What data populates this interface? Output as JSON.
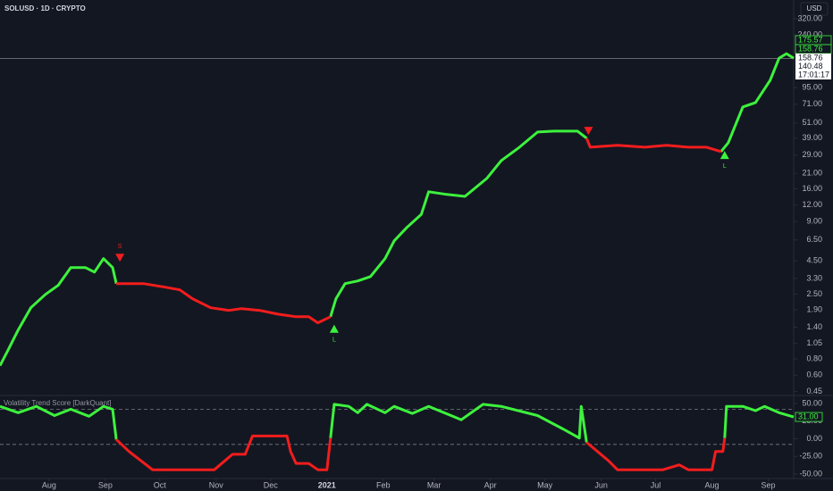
{
  "chart_data": [
    {
      "type": "line",
      "title": "SOLUSD · 1D · CRYPTO",
      "currency": "USD",
      "log": true,
      "xlim": [
        0,
        437
      ],
      "ylim": [
        0.42,
        445
      ],
      "yticks": [
        {
          "value": 320,
          "label": "320.00"
        },
        {
          "value": 240,
          "label": "240.00"
        },
        {
          "value": 95,
          "label": "95.00"
        },
        {
          "value": 71,
          "label": "71.00"
        },
        {
          "value": 51,
          "label": "51.00"
        },
        {
          "value": 39,
          "label": "39.00"
        },
        {
          "value": 29,
          "label": "29.00"
        },
        {
          "value": 21,
          "label": "21.00"
        },
        {
          "value": 16,
          "label": "16.00"
        },
        {
          "value": 12,
          "label": "12.00"
        },
        {
          "value": 9,
          "label": "9.00"
        },
        {
          "value": 6.5,
          "label": "6.50"
        },
        {
          "value": 4.5,
          "label": "4.50"
        },
        {
          "value": 3.3,
          "label": "3.30"
        },
        {
          "value": 2.5,
          "label": "2.50"
        },
        {
          "value": 1.9,
          "label": "1.90"
        },
        {
          "value": 1.4,
          "label": "1.40"
        },
        {
          "value": 1.05,
          "label": "1.05"
        },
        {
          "value": 0.8,
          "label": "0.80"
        },
        {
          "value": 0.6,
          "label": "0.60"
        },
        {
          "value": 0.45,
          "label": "0.45"
        }
      ],
      "x": [
        0,
        5,
        10,
        17,
        25,
        32,
        39,
        47,
        52,
        57,
        62,
        64,
        79,
        91,
        99,
        106,
        116,
        126,
        133,
        143,
        153,
        163,
        170,
        175,
        182,
        185,
        190,
        197,
        204,
        212,
        217,
        224,
        232,
        236,
        246,
        256,
        268,
        276,
        286,
        296,
        305,
        318,
        323,
        325,
        340,
        355,
        367,
        379,
        389,
        397,
        401,
        409,
        416,
        424,
        429,
        433,
        437
      ],
      "series": [
        {
          "color": "#3df23d",
          "values": [
            0.71,
            0.97,
            1.33,
            1.97,
            2.49,
            2.92,
            4.0,
            4.0,
            3.69,
            4.68,
            4.0,
            3.01,
            null,
            null,
            null,
            null,
            null,
            null,
            null,
            null,
            null,
            null,
            null,
            null,
            1.68,
            2.31,
            3.01,
            3.16,
            3.41,
            4.68,
            6.4,
            8.1,
            10.2,
            15.2,
            14.5,
            14.0,
            19.2,
            26.3,
            33.3,
            43.5,
            44.2,
            44.2,
            39.0,
            null,
            null,
            null,
            null,
            null,
            null,
            30.8,
            36.0,
            67.6,
            73.1,
            108,
            160,
            173,
            160
          ]
        },
        {
          "color": "#f21d1d",
          "values": [
            null,
            null,
            null,
            null,
            null,
            null,
            null,
            null,
            null,
            null,
            null,
            3.01,
            3.01,
            2.83,
            2.7,
            2.31,
            1.97,
            1.88,
            1.94,
            1.88,
            1.76,
            1.68,
            1.68,
            1.51,
            1.68,
            null,
            null,
            null,
            null,
            null,
            null,
            null,
            null,
            null,
            null,
            null,
            null,
            null,
            null,
            null,
            null,
            null,
            39.0,
            33.3,
            34.4,
            33.3,
            34.4,
            33.3,
            33.3,
            30.8,
            null,
            null,
            null,
            null,
            null,
            null,
            null
          ]
        }
      ],
      "signals": [
        {
          "x": 66,
          "y": 4.79,
          "dir": "down",
          "label": "S"
        },
        {
          "x": 184,
          "y": 1.35,
          "dir": "up",
          "label": "L"
        },
        {
          "x": 324,
          "y": 44.7,
          "dir": "down"
        },
        {
          "x": 399,
          "y": 28.8,
          "dir": "up",
          "label": "L"
        }
      ],
      "price_badges": [
        {
          "value": 175.57,
          "color": "#3df23d"
        },
        {
          "value": 158.76,
          "color": "#3df23d"
        }
      ],
      "last_price": 158.76,
      "last_price_info": [
        140.48,
        "17:01:17"
      ]
    },
    {
      "type": "line",
      "title": "Volatility Trend Score [DarkQuant]",
      "xlim": [
        0,
        437
      ],
      "ylim": [
        -56.4,
        61.5
      ],
      "yticks": [
        {
          "value": 50,
          "label": "50.00"
        },
        {
          "value": 25,
          "label": "25.00"
        },
        {
          "value": 0,
          "label": "0.00"
        },
        {
          "value": -25,
          "label": "-25.00"
        },
        {
          "value": -50,
          "label": "-50.00"
        }
      ],
      "levels": [
        42,
        -8
      ],
      "xticks": [
        {
          "value": 27,
          "label": "Aug"
        },
        {
          "value": 58,
          "label": "Sep"
        },
        {
          "value": 88,
          "label": "Oct"
        },
        {
          "value": 119,
          "label": "Nov"
        },
        {
          "value": 149,
          "label": "Dec"
        },
        {
          "value": 180,
          "label": "2021"
        },
        {
          "value": 211,
          "label": "Feb"
        },
        {
          "value": 239,
          "label": "Mar"
        },
        {
          "value": 270,
          "label": "Apr"
        },
        {
          "value": 300,
          "label": "May"
        },
        {
          "value": 331,
          "label": "Jun"
        },
        {
          "value": 361,
          "label": "Jul"
        },
        {
          "value": 392,
          "label": "Aug"
        },
        {
          "value": 423,
          "label": "Sep"
        }
      ],
      "x": [
        0,
        10,
        20,
        30,
        39,
        49,
        57,
        62,
        64,
        71,
        84,
        118,
        128,
        135,
        139,
        158,
        160,
        163,
        170,
        175,
        180,
        182,
        184,
        192,
        197,
        202,
        212,
        217,
        227,
        236,
        254,
        266,
        276,
        296,
        310,
        319,
        320,
        323,
        335,
        340,
        365,
        374,
        379,
        392,
        394,
        398,
        399,
        400,
        409,
        416,
        421,
        429,
        437
      ],
      "series": [
        {
          "color": "#3df23d",
          "values": [
            46,
            37,
            46,
            33,
            42,
            32,
            46,
            42,
            -1,
            null,
            null,
            null,
            null,
            null,
            null,
            null,
            null,
            null,
            null,
            null,
            null,
            1,
            49,
            46,
            37,
            49,
            37,
            46,
            36,
            46,
            27,
            49,
            46,
            33,
            14,
            1,
            46,
            -5,
            null,
            null,
            null,
            null,
            null,
            null,
            null,
            null,
            1,
            46,
            46,
            40,
            46,
            37,
            31
          ]
        },
        {
          "color": "#f21d1d",
          "values": [
            null,
            null,
            null,
            null,
            null,
            null,
            null,
            null,
            -1,
            -18,
            -44,
            -44,
            -22,
            -22,
            4,
            4,
            -18,
            -35,
            -35,
            -44,
            -44,
            1,
            null,
            null,
            null,
            null,
            null,
            null,
            null,
            null,
            null,
            null,
            null,
            null,
            null,
            null,
            null,
            -5,
            -31,
            -44,
            -44,
            -37,
            -44,
            -44,
            -18,
            -18,
            1,
            null,
            null,
            null,
            null,
            null,
            null
          ]
        }
      ],
      "last_badge": {
        "value": 31,
        "label": "31.00"
      }
    }
  ]
}
